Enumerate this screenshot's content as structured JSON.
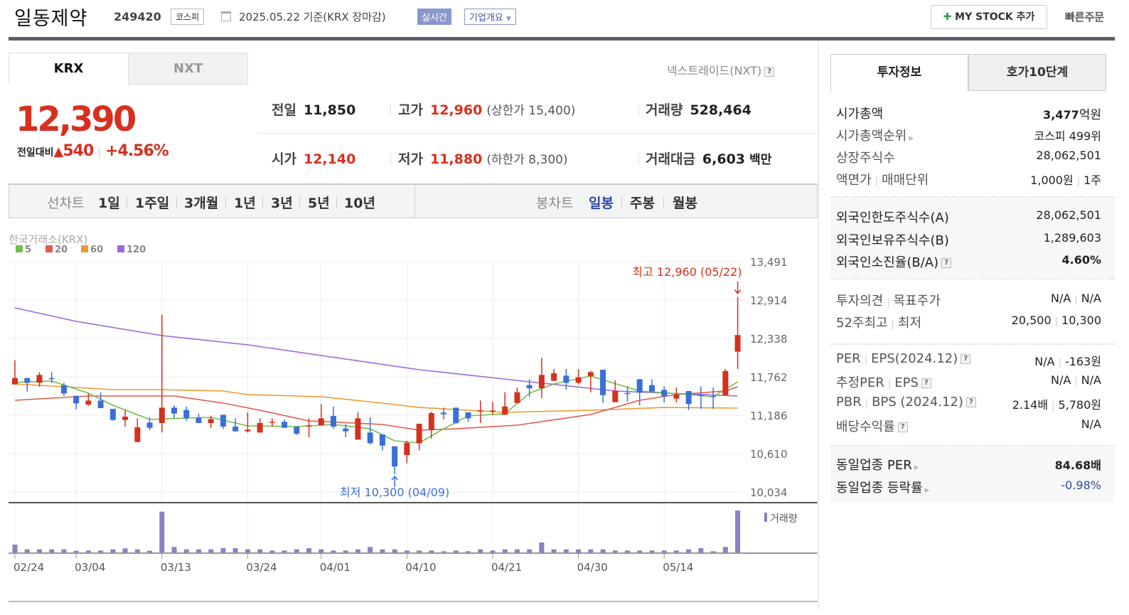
{
  "header": {
    "title": "일동제약",
    "code": "249420",
    "market": "코스피",
    "date": "2025.05.22 기준(KRX 장마감)",
    "realtime": "실시간",
    "corp_overview": "기업개요",
    "my_stock": "MY STOCK 추가",
    "quick_order": "빠른주문"
  },
  "exchange_tabs": [
    "KRX",
    "NXT"
  ],
  "nxt_link": "넥스트레이드(NXT)",
  "price": {
    "current": "12,390",
    "change_label": "전일대비",
    "change": "540",
    "change_pct": "+4.56%"
  },
  "stats": {
    "prev_label": "전일",
    "prev": "11,850",
    "high_label": "고가",
    "high": "12,960",
    "upper_limit": "(상한가 15,400)",
    "volume_label": "거래량",
    "volume": "528,464",
    "open_label": "시가",
    "open": "12,140",
    "low_label": "저가",
    "low": "11,880",
    "lower_limit": "(하한가 8,300)",
    "amount_label": "거래대금",
    "amount": "6,603",
    "amount_unit": "백만"
  },
  "period_bar": {
    "line_chart": "선차트",
    "periods": [
      "1일",
      "1주일",
      "3개월",
      "1년",
      "3년",
      "5년",
      "10년"
    ],
    "candle_chart": "봉차트",
    "candle_types": [
      "일봉",
      "주봉",
      "월봉"
    ],
    "selected_candle": "일봉"
  },
  "colors": {
    "up": "#d6301e",
    "down": "#3b6fd8",
    "ma5": "#6fbf4a",
    "ma20": "#e05a4c",
    "ma60": "#ef9a2e",
    "ma120": "#9b6ad6",
    "volume": "#8f7fc4",
    "accent_blue": "#2c4aa8"
  },
  "chart_data": {
    "type": "candlestick",
    "source_label": "한국거래소(KRX)",
    "legend": [
      "5",
      "20",
      "60",
      "120"
    ],
    "y_ticks": [
      "13,491",
      "12,914",
      "12,338",
      "11,762",
      "11,186",
      "10,610",
      "10,034"
    ],
    "ylim": [
      10034,
      13491
    ],
    "x_ticks": [
      {
        "label": "02/24",
        "index": 0
      },
      {
        "label": "03/04",
        "index": 5
      },
      {
        "label": "03/13",
        "index": 12
      },
      {
        "label": "03/24",
        "index": 19
      },
      {
        "label": "04/01",
        "index": 25
      },
      {
        "label": "04/10",
        "index": 32
      },
      {
        "label": "04/21",
        "index": 39
      },
      {
        "label": "04/30",
        "index": 46
      },
      {
        "label": "05/14",
        "index": 53
      }
    ],
    "ohlc": [
      [
        11648,
        12011,
        11648,
        11744
      ],
      [
        11744,
        11744,
        11542,
        11673
      ],
      [
        11673,
        11833,
        11613,
        11791
      ],
      [
        11744,
        11833,
        11673,
        11737
      ],
      [
        11638,
        11673,
        11478,
        11513
      ],
      [
        11478,
        11478,
        11275,
        11364
      ],
      [
        11346,
        11513,
        11328,
        11406
      ],
      [
        11406,
        11531,
        11293,
        11293
      ],
      [
        11282,
        11282,
        11104,
        11115
      ],
      [
        11115,
        11264,
        11015,
        11165
      ],
      [
        10784,
        11140,
        10784,
        11004
      ],
      [
        11076,
        11157,
        10962,
        10997
      ],
      [
        11069,
        12694,
        10926,
        11300
      ],
      [
        11300,
        11335,
        11140,
        11211
      ],
      [
        11264,
        11317,
        11104,
        11140
      ],
      [
        11147,
        11211,
        11069,
        11069
      ],
      [
        11069,
        11175,
        10997,
        11129
      ],
      [
        11193,
        11193,
        10980,
        11015
      ],
      [
        11015,
        11140,
        10944,
        10944
      ],
      [
        10944,
        11229,
        10926,
        10969
      ],
      [
        10926,
        11140,
        10926,
        11069
      ],
      [
        11076,
        11140,
        11015,
        11087
      ],
      [
        11087,
        11122,
        10997,
        10997
      ],
      [
        11015,
        11015,
        10891,
        10909
      ],
      [
        11022,
        11140,
        10855,
        11033
      ],
      [
        11033,
        11353,
        11033,
        11140
      ],
      [
        11175,
        11317,
        10980,
        11015
      ],
      [
        10987,
        11051,
        10855,
        10944
      ],
      [
        10820,
        11229,
        10820,
        11140
      ],
      [
        10926,
        11157,
        10748,
        10766
      ],
      [
        10898,
        10898,
        10660,
        10731
      ],
      [
        10720,
        10720,
        10300,
        10418
      ],
      [
        10588,
        10802,
        10464,
        10773
      ],
      [
        10766,
        11058,
        10659,
        11058
      ],
      [
        10962,
        11236,
        10837,
        11218
      ],
      [
        11225,
        11300,
        11122,
        11200
      ],
      [
        11300,
        11300,
        11060,
        11069
      ],
      [
        11229,
        11229,
        11087,
        11140
      ],
      [
        11240,
        11406,
        11069,
        11257
      ],
      [
        11240,
        11388,
        11193,
        11257
      ],
      [
        11193,
        11531,
        11193,
        11317
      ],
      [
        11371,
        11602,
        11371,
        11531
      ],
      [
        11638,
        11727,
        11460,
        11591
      ],
      [
        11591,
        12047,
        11442,
        11791
      ],
      [
        11702,
        11880,
        11702,
        11816
      ],
      [
        11780,
        11880,
        11567,
        11673
      ],
      [
        11673,
        11880,
        11648,
        11755
      ],
      [
        11773,
        11851,
        11531,
        11833
      ],
      [
        11869,
        11869,
        11371,
        11488
      ],
      [
        11382,
        11709,
        11382,
        11556
      ],
      [
        11520,
        11620,
        11389,
        11503
      ],
      [
        11727,
        11727,
        11335,
        11524
      ],
      [
        11638,
        11727,
        11531,
        11542
      ],
      [
        11567,
        11620,
        11378,
        11471
      ],
      [
        11435,
        11602,
        11378,
        11495
      ],
      [
        11549,
        11549,
        11264,
        11353
      ],
      [
        11492,
        11620,
        11282,
        11488
      ],
      [
        11474,
        11602,
        11282,
        11467
      ],
      [
        11488,
        11880,
        11488,
        11850
      ],
      [
        12140,
        12960,
        11880,
        12390
      ]
    ],
    "moving_averages": [
      {
        "name": "5",
        "points": [
          [
            0,
            11680
          ],
          [
            3,
            11698
          ],
          [
            6,
            11517
          ],
          [
            8,
            11336
          ],
          [
            11,
            11122
          ],
          [
            14,
            11144
          ],
          [
            16,
            11154
          ],
          [
            19,
            11026
          ],
          [
            23,
            11016
          ],
          [
            26,
            11048
          ],
          [
            29,
            10983
          ],
          [
            31,
            10802
          ],
          [
            33,
            10770
          ],
          [
            35,
            10983
          ],
          [
            37,
            11176
          ],
          [
            40,
            11208
          ],
          [
            42,
            11517
          ],
          [
            44,
            11656
          ],
          [
            47,
            11773
          ],
          [
            51,
            11549
          ],
          [
            55,
            11496
          ],
          [
            57,
            11464
          ],
          [
            59,
            11688
          ]
        ]
      },
      {
        "name": "20",
        "points": [
          [
            0,
            11410
          ],
          [
            6,
            11474
          ],
          [
            13,
            11474
          ],
          [
            17,
            11368
          ],
          [
            20,
            11261
          ],
          [
            24,
            11101
          ],
          [
            30,
            11048
          ],
          [
            33,
            10962
          ],
          [
            36,
            10983
          ],
          [
            41,
            11037
          ],
          [
            47,
            11197
          ],
          [
            51,
            11410
          ],
          [
            54,
            11496
          ],
          [
            58,
            11549
          ],
          [
            59,
            11613
          ]
        ]
      },
      {
        "name": "60",
        "points": [
          [
            0,
            11656
          ],
          [
            4,
            11613
          ],
          [
            8,
            11570
          ],
          [
            12,
            11570
          ],
          [
            17,
            11549
          ],
          [
            19,
            11496
          ],
          [
            25,
            11464
          ],
          [
            30,
            11368
          ],
          [
            33,
            11303
          ],
          [
            37,
            11261
          ],
          [
            40,
            11229
          ],
          [
            47,
            11261
          ],
          [
            53,
            11303
          ],
          [
            59,
            11293
          ]
        ]
      },
      {
        "name": "120",
        "points": [
          [
            0,
            12797
          ],
          [
            5,
            12595
          ],
          [
            12,
            12381
          ],
          [
            19,
            12243
          ],
          [
            25,
            12083
          ],
          [
            33,
            11869
          ],
          [
            42,
            11688
          ],
          [
            49,
            11549
          ],
          [
            59,
            11474
          ]
        ]
      }
    ],
    "volume_label": "거래량",
    "volume": [
      98500,
      38800,
      38800,
      38800,
      38800,
      20900,
      23900,
      23900,
      38800,
      50800,
      38800,
      20900,
      513600,
      68700,
      38800,
      38800,
      38800,
      53700,
      53700,
      38800,
      38800,
      23900,
      23900,
      38800,
      53700,
      38800,
      23900,
      23900,
      38800,
      68700,
      38800,
      38800,
      23900,
      23900,
      23900,
      14900,
      23900,
      14900,
      38800,
      23900,
      38800,
      38800,
      38800,
      125400,
      38800,
      38800,
      38800,
      38800,
      38800,
      23900,
      23900,
      23900,
      23900,
      23900,
      23900,
      38800,
      53700,
      14900,
      68700,
      528464
    ],
    "annotations": {
      "high": "최고 12,960 (05/22)",
      "high_index": 59,
      "high_value": 12960,
      "low": "최저 10,300 (04/09)",
      "low_index": 31,
      "low_value": 10300
    }
  },
  "side": {
    "tabs": [
      "투자정보",
      "호가10단계"
    ],
    "market_cap_label": "시가총액",
    "market_cap": "3,477",
    "market_cap_unit": "억원",
    "rank_label": "시가총액순위",
    "rank": "코스피 499위",
    "shares_label": "상장주식수",
    "shares": "28,062,501",
    "face_label": "액면가",
    "unit_label": "매매단위",
    "face": "1,000원",
    "unit": "1주",
    "foreign_limit_label": "외국인한도주식수(A)",
    "foreign_limit": "28,062,501",
    "foreign_hold_label": "외국인보유주식수(B)",
    "foreign_hold": "1,289,603",
    "foreign_ratio_label": "외국인소진율(B/A)",
    "foreign_ratio": "4.60%",
    "opinion_label": "투자의견",
    "target_label": "목표주가",
    "opinion": "N/A",
    "target": "N/A",
    "w52_high_label": "52주최고",
    "w52_low_label": "최저",
    "w52_high": "20,500",
    "w52_low": "10,300",
    "per_label": "PER",
    "eps_label": "EPS(2024.12)",
    "per": "N/A",
    "eps": "-163원",
    "est_per_label": "추정PER",
    "est_eps_label": "EPS",
    "est_per": "N/A",
    "est_eps": "N/A",
    "pbr_label": "PBR",
    "bps_label": "BPS (2024.12)",
    "pbr": "2.14배",
    "bps": "5,780원",
    "div_label": "배당수익률",
    "div": "N/A",
    "ind_per_label": "동일업종 PER",
    "ind_per": "84.68배",
    "ind_chg_label": "동일업종 등락률",
    "ind_chg": "-0.98%"
  }
}
